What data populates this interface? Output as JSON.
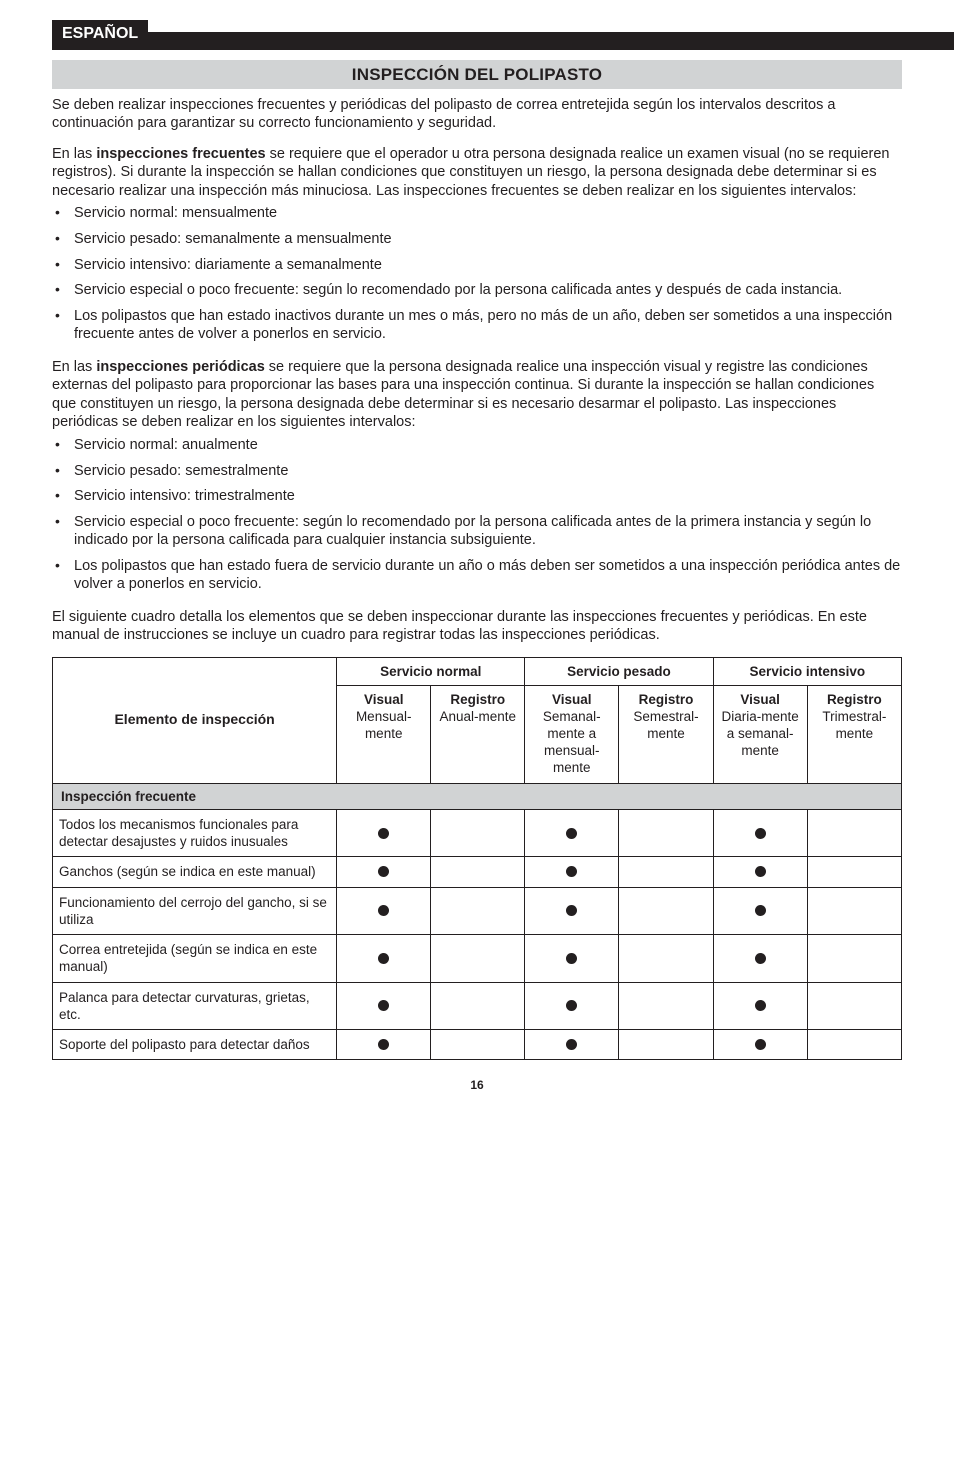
{
  "lang_tab": "ESPAÑOL",
  "section_title": "INSPECCIÓN DEL POLIPASTO",
  "intro_para": "Se deben realizar inspecciones frecuentes y periódicas del polipasto de correa entretejida según los intervalos descritos a continuación para garantizar su correcto funcionamiento y seguridad.",
  "freq_para_prefix": "En las ",
  "freq_bold": "inspecciones frecuentes",
  "freq_para_suffix": " se requiere que el operador u otra persona designada realice un examen visual (no se requieren registros). Si durante la inspección se hallan condiciones que constituyen un riesgo, la persona designada debe determinar si es necesario realizar una inspección más minuciosa. Las inspecciones frecuentes se deben realizar en los siguientes intervalos:",
  "freq_list": [
    "Servicio normal: mensualmente",
    "Servicio pesado: semanalmente a mensualmente",
    "Servicio intensivo: diariamente a semanalmente",
    "Servicio especial o poco frecuente: según lo recomendado por la persona calificada antes y después de cada instancia.",
    "Los polipastos que han estado inactivos durante un mes o más, pero no más de un año, deben ser sometidos a una inspección frecuente antes de volver a ponerlos en servicio."
  ],
  "per_para_prefix": "En las ",
  "per_bold": "inspecciones periódicas",
  "per_para_suffix": " se requiere que la persona designada realice una inspección visual y registre las condiciones externas del polipasto para proporcionar las bases para una inspección continua. Si durante la inspección se hallan condiciones que constituyen un riesgo, la persona designada debe determinar si es necesario desarmar el polipasto. Las inspecciones periódicas se deben realizar en los siguientes intervalos:",
  "per_list": [
    "Servicio normal: anualmente",
    "Servicio pesado: semestralmente",
    "Servicio intensivo: trimestralmente",
    "Servicio especial o poco frecuente: según lo recomendado por la persona calificada antes de la primera instancia y según lo indicado por la persona calificada para cualquier instancia subsiguiente.",
    "Los polipastos que han estado fuera de servicio durante un año o más deben ser sometidos a una inspección periódica antes de volver a ponerlos en servicio."
  ],
  "closing_para": "El siguiente cuadro detalla los elementos que se deben inspeccionar durante las inspecciones frecuentes y periódicas. En este manual de instrucciones se incluye un cuadro para registrar todas las inspecciones periódicas.",
  "table": {
    "elem_header": "Elemento de inspección",
    "groups": [
      "Servicio normal",
      "Servicio pesado",
      "Servicio intensivo"
    ],
    "sub_cols": [
      {
        "bold": "Visual",
        "rest": "Mensual-mente"
      },
      {
        "bold": "Registro",
        "rest": "Anual-mente"
      },
      {
        "bold": "Visual",
        "rest": "Semanal-mente a mensual-mente"
      },
      {
        "bold": "Registro",
        "rest": "Semestral-mente"
      },
      {
        "bold": "Visual",
        "rest": "Diaria-mente a semanal-mente"
      },
      {
        "bold": "Registro",
        "rest": "Trimestral-mente"
      }
    ],
    "section_label": "Inspección frecuente",
    "rows": [
      {
        "label": "Todos los mecanismos funcionales para detectar desajustes y ruidos inusuales",
        "dots": [
          true,
          false,
          true,
          false,
          true,
          false
        ]
      },
      {
        "label": "Ganchos (según se indica en este manual)",
        "dots": [
          true,
          false,
          true,
          false,
          true,
          false
        ]
      },
      {
        "label": "Funcionamiento del cerrojo del gancho, si se utiliza",
        "dots": [
          true,
          false,
          true,
          false,
          true,
          false
        ]
      },
      {
        "label": "Correa entretejida (según se indica en este manual)",
        "dots": [
          true,
          false,
          true,
          false,
          true,
          false
        ]
      },
      {
        "label": "Palanca para detectar curvaturas, grietas, etc.",
        "dots": [
          true,
          false,
          true,
          false,
          true,
          false
        ]
      },
      {
        "label": "Soporte del polipasto para detectar daños",
        "dots": [
          true,
          false,
          true,
          false,
          true,
          false
        ]
      }
    ]
  },
  "page_number": "16"
}
